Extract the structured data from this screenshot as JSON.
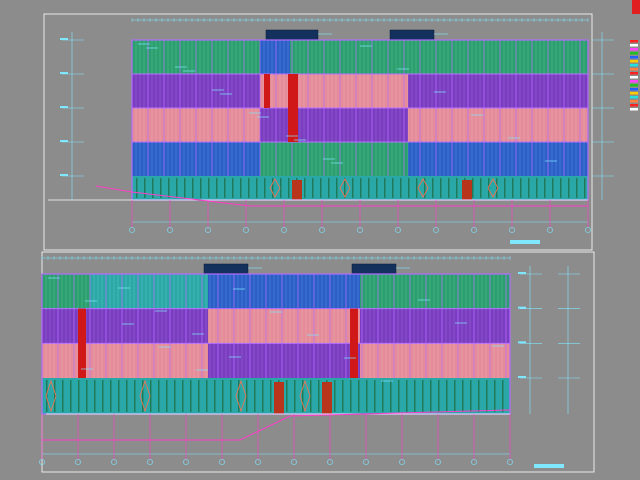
{
  "drawing": {
    "sheet_count": 2,
    "floors_per_elevation": 5,
    "colors": {
      "background": "#8c8c8c",
      "frame": "#ffffff",
      "dimension": "#7fe7ff",
      "mullion": "#b56cff",
      "green_band": "#2aa06e",
      "purple_band": "#7a3cc0",
      "pink_band": "#e58c98",
      "blue_band": "#2a5fc8",
      "teal_band": "#2aa8a8",
      "red_accent": "#d01818",
      "navy_roof": "#14315e",
      "magenta_line": "#ff3cc8",
      "ground_line": "#ffffff"
    },
    "icons": {
      "legend_icon": "legend-swatch-icon",
      "north_marker": "axis-bubble-icon"
    }
  }
}
